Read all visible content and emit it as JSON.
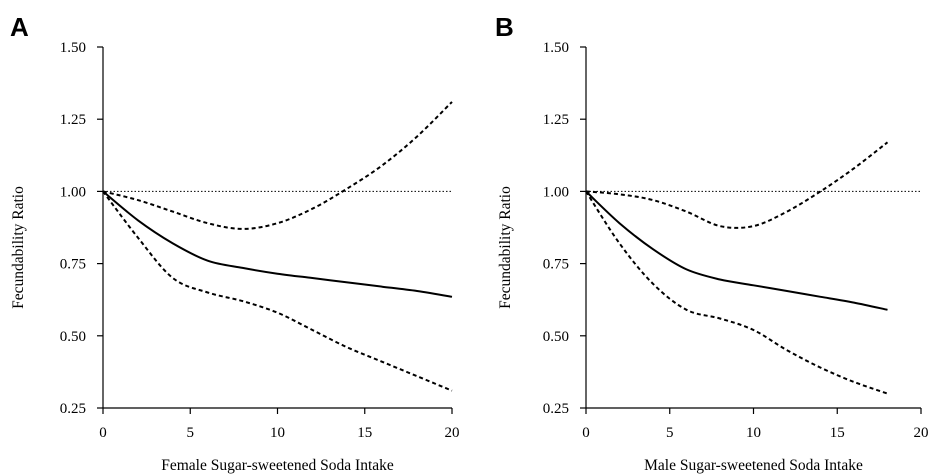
{
  "chart_data": [
    {
      "type": "line",
      "panel_label": "A",
      "xlabel": "Female Sugar-sweetened Soda Intake",
      "ylabel": "Fecundability Ratio",
      "xlim": [
        0,
        20
      ],
      "ylim": [
        0.25,
        1.5
      ],
      "xticks": [
        0,
        5,
        10,
        15,
        20
      ],
      "yticks": [
        "0.25",
        "0.50",
        "0.75",
        "1.00",
        "1.25",
        "1.50"
      ],
      "reference_line": 1.0,
      "grid": false,
      "series": [
        {
          "role": "estimate",
          "x": [
            0,
            2,
            4,
            6,
            8,
            10,
            12,
            14,
            16,
            18,
            20
          ],
          "values": [
            1.0,
            0.9,
            0.82,
            0.76,
            0.735,
            0.715,
            0.7,
            0.685,
            0.67,
            0.655,
            0.635
          ]
        },
        {
          "role": "upper_ci",
          "x": [
            0,
            2,
            4,
            6,
            8,
            10,
            12,
            14,
            16,
            18,
            20
          ],
          "values": [
            1.0,
            0.97,
            0.93,
            0.89,
            0.87,
            0.89,
            0.94,
            1.01,
            1.09,
            1.19,
            1.31
          ]
        },
        {
          "role": "lower_ci",
          "x": [
            0,
            2,
            4,
            6,
            8,
            10,
            12,
            14,
            16,
            18,
            20
          ],
          "values": [
            1.0,
            0.84,
            0.7,
            0.65,
            0.62,
            0.58,
            0.52,
            0.46,
            0.41,
            0.36,
            0.31
          ]
        }
      ]
    },
    {
      "type": "line",
      "panel_label": "B",
      "xlabel": "Male Sugar-sweetened Soda Intake",
      "ylabel": "Fecundability Ratio",
      "xlim": [
        0,
        20
      ],
      "ylim": [
        0.25,
        1.5
      ],
      "xticks": [
        0,
        5,
        10,
        15,
        20
      ],
      "yticks": [
        "0.25",
        "0.50",
        "0.75",
        "1.00",
        "1.25",
        "1.50"
      ],
      "reference_line": 1.0,
      "grid": false,
      "series": [
        {
          "role": "estimate",
          "x": [
            0,
            2,
            4,
            6,
            8,
            10,
            12,
            14,
            16,
            18
          ],
          "values": [
            1.0,
            0.89,
            0.8,
            0.73,
            0.695,
            0.675,
            0.655,
            0.635,
            0.615,
            0.59
          ]
        },
        {
          "role": "upper_ci",
          "x": [
            0,
            2,
            4,
            6,
            8,
            10,
            12,
            14,
            16,
            18
          ],
          "values": [
            1.0,
            0.99,
            0.97,
            0.93,
            0.88,
            0.88,
            0.93,
            1.0,
            1.08,
            1.17
          ]
        },
        {
          "role": "lower_ci",
          "x": [
            0,
            2,
            4,
            6,
            8,
            10,
            12,
            14,
            16,
            18
          ],
          "values": [
            1.0,
            0.82,
            0.68,
            0.59,
            0.56,
            0.52,
            0.45,
            0.39,
            0.34,
            0.3
          ]
        }
      ]
    }
  ]
}
